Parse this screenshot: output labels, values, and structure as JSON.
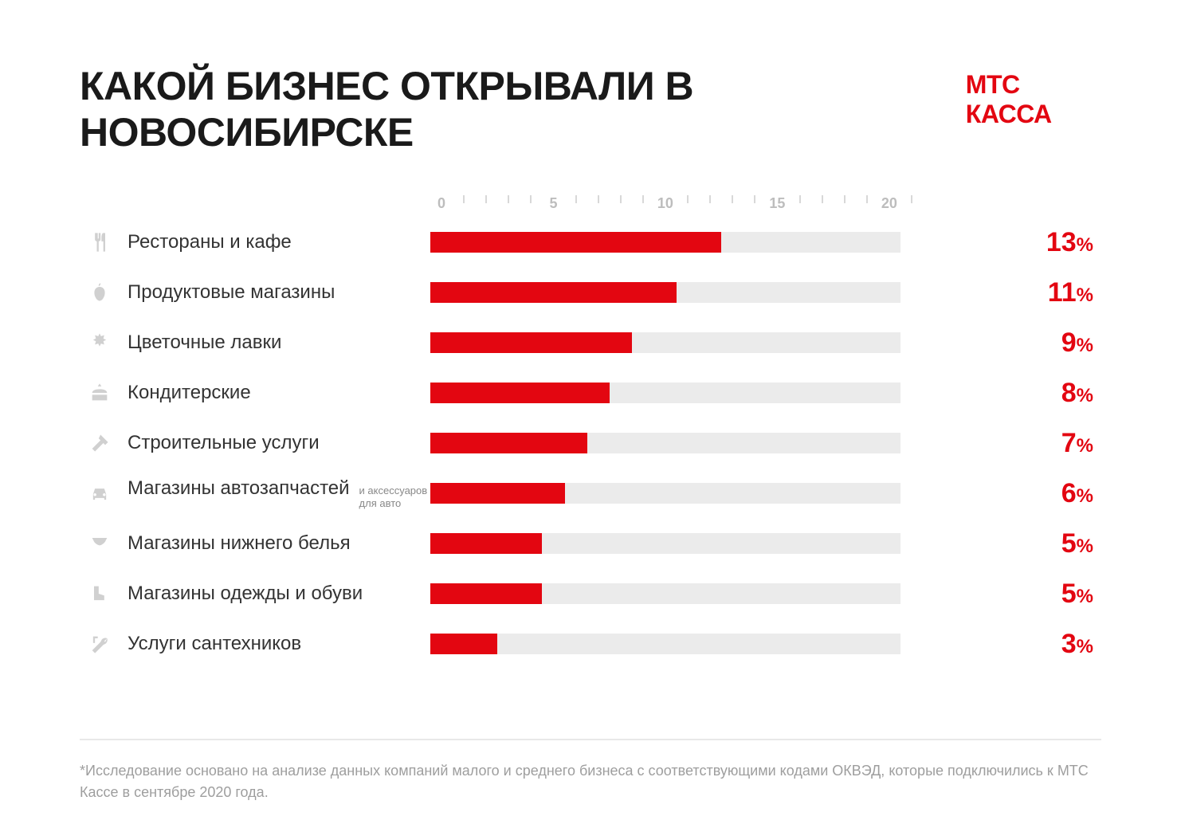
{
  "title": "КАКОЙ БИЗНЕС ОТКРЫВАЛИ В НОВОСИБИРСКЕ",
  "brand": "МТС КАССА",
  "chart": {
    "type": "bar",
    "bar_color": "#e30611",
    "track_color": "#ebebeb",
    "background_color": "#ffffff",
    "axis_color": "#bdbdbd",
    "minor_tick_color": "#d8d8d8",
    "label_color": "#333333",
    "value_color": "#e30611",
    "label_fontsize": 24,
    "value_fontsize": 34,
    "value_suffix_fontsize": 24,
    "max": 21,
    "major_ticks": [
      0,
      5,
      10,
      15,
      20
    ],
    "minor_step": 1,
    "bars": [
      {
        "icon": "utensils",
        "label": "Рестораны и кафе",
        "sublabel": "",
        "value": 13
      },
      {
        "icon": "apple",
        "label": "Продуктовые магазины",
        "sublabel": "",
        "value": 11
      },
      {
        "icon": "flower",
        "label": "Цветочные лавки",
        "sublabel": "",
        "value": 9
      },
      {
        "icon": "cake",
        "label": "Кондитерские",
        "sublabel": "",
        "value": 8
      },
      {
        "icon": "hammer",
        "label": "Строительные услуги",
        "sublabel": "",
        "value": 7
      },
      {
        "icon": "car",
        "label": "Магазины автозапчастей",
        "sublabel": "и аксессуаров для авто",
        "value": 6
      },
      {
        "icon": "lingerie",
        "label": "Магазины нижнего белья",
        "sublabel": "",
        "value": 5
      },
      {
        "icon": "boot",
        "label": "Магазины одежды и обуви",
        "sublabel": "",
        "value": 5
      },
      {
        "icon": "wrench",
        "label": "Услуги сантехников",
        "sublabel": "",
        "value": 3
      }
    ]
  },
  "footnote": "*Исследование основано на анализе данных компаний малого и среднего бизнеса с соответствующими кодами ОКВЭД, которые подключились к МТС Кассе в сентябре 2020 года."
}
